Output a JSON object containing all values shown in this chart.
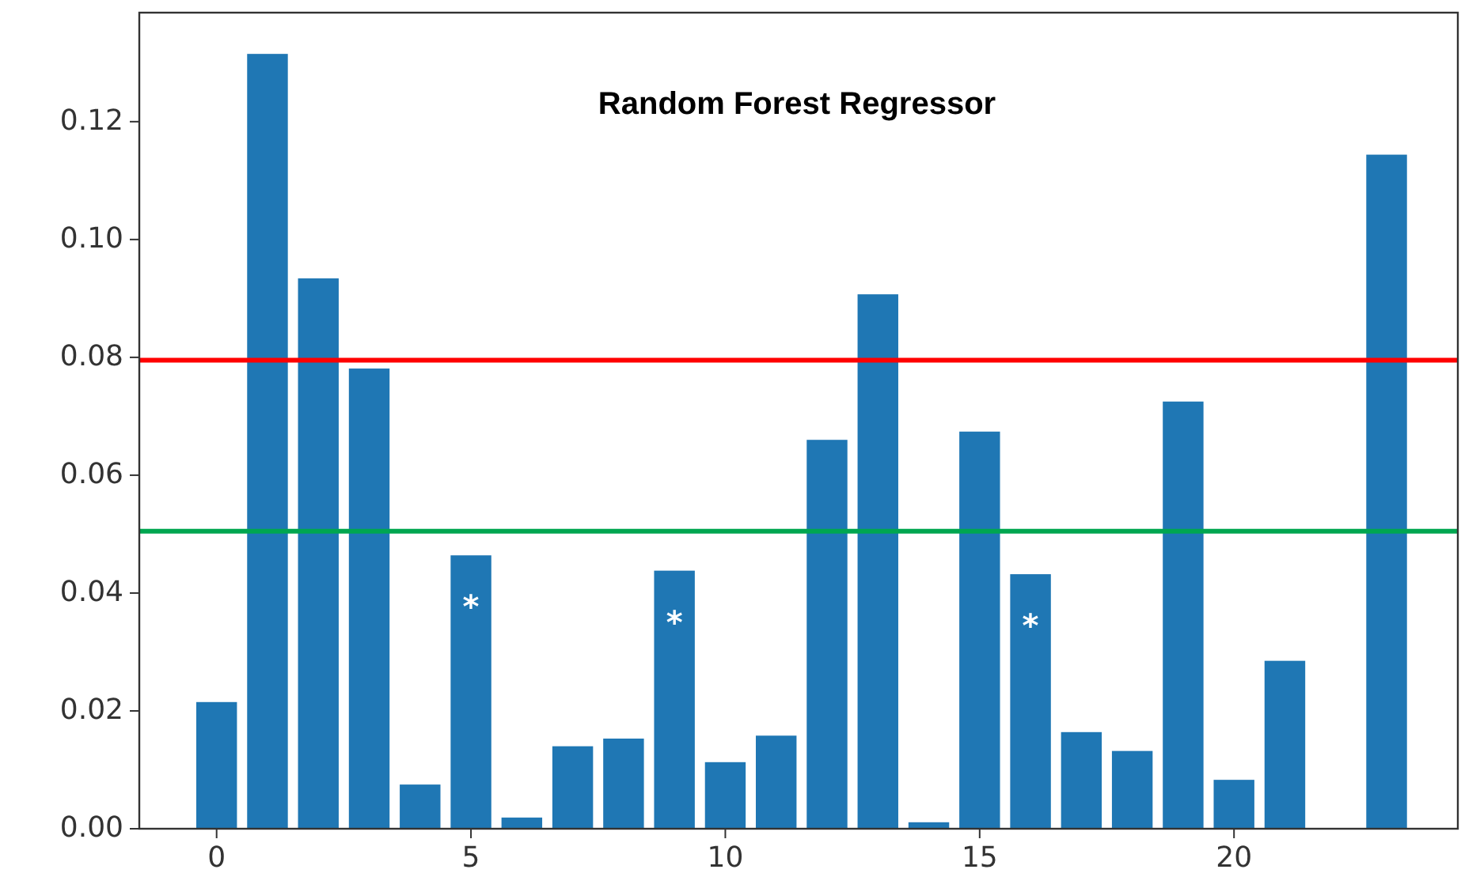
{
  "chart_data": {
    "type": "bar",
    "title": "Random Forest Regressor",
    "x": [
      0,
      1,
      2,
      3,
      4,
      5,
      6,
      7,
      8,
      9,
      10,
      11,
      12,
      13,
      14,
      15,
      16,
      17,
      18,
      19,
      20,
      21,
      22,
      23
    ],
    "values": [
      0.0215,
      0.1315,
      0.0934,
      0.0781,
      0.0075,
      0.0464,
      0.0019,
      0.014,
      0.0153,
      0.0438,
      0.0113,
      0.0158,
      0.066,
      0.0907,
      0.0011,
      0.0674,
      0.0432,
      0.0164,
      0.0132,
      0.0725,
      0.0083,
      0.0285,
      0,
      0.1144
    ],
    "color": "#1f77b4",
    "xlim": [
      -1.52,
      24.4
    ],
    "xticks": [
      0,
      5,
      10,
      15,
      20
    ],
    "ylim": [
      0,
      0.1385
    ],
    "yticks": [
      {
        "value": 0,
        "label": "0.00"
      },
      {
        "value": 0.02,
        "label": "0.02"
      },
      {
        "value": 0.04,
        "label": "0.04"
      },
      {
        "value": 0.06,
        "label": "0.06"
      },
      {
        "value": 0.08,
        "label": "0.08"
      },
      {
        "value": 0.1,
        "label": "0.10"
      },
      {
        "value": 0.12,
        "label": "0.12"
      }
    ],
    "ref_lines": [
      {
        "axis": "y",
        "value": 0.0795,
        "color": "#ff0000"
      },
      {
        "axis": "y",
        "value": 0.0505,
        "color": "#00a650"
      }
    ],
    "annotations": [
      {
        "text": "*",
        "x": 5,
        "y": 0.0464
      },
      {
        "text": "*",
        "x": 9,
        "y": 0.0438
      },
      {
        "text": "*",
        "x": 16,
        "y": 0.0432
      }
    ],
    "grid": false
  }
}
